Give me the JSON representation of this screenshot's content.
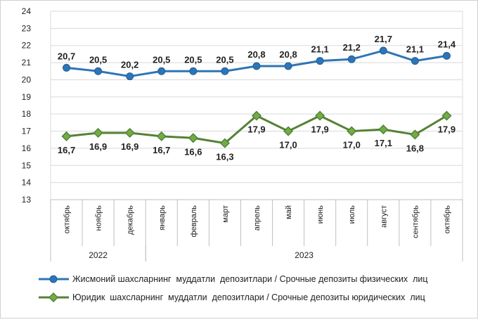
{
  "chart_data": {
    "type": "line",
    "categories": [
      "октябрь",
      "ноябрь",
      "декабрь",
      "январь",
      "февраль",
      "март",
      "апрель",
      "май",
      "июнь",
      "июль",
      "август",
      "сентябрь",
      "октябрь"
    ],
    "year_groups": [
      {
        "label": "2022",
        "start": 0,
        "end": 2
      },
      {
        "label": "2023",
        "start": 3,
        "end": 12
      }
    ],
    "ylim": [
      13,
      24
    ],
    "yticks": [
      13,
      14,
      15,
      16,
      17,
      18,
      19,
      20,
      21,
      22,
      23,
      24
    ],
    "grid": true,
    "legend_position": "bottom",
    "series": [
      {
        "name": "Жисмоний шахсларнинг  муддатли  депозитлари / Срочные депозиты физических  лиц",
        "color": "#2E75B6",
        "marker": "circle",
        "values": [
          20.7,
          20.5,
          20.2,
          20.5,
          20.5,
          20.5,
          20.8,
          20.8,
          21.1,
          21.2,
          21.7,
          21.1,
          21.4
        ],
        "labels": [
          "20,7",
          "20,5",
          "20,2",
          "20,5",
          "20,5",
          "20,5",
          "20,8",
          "20,8",
          "21,1",
          "21,2",
          "21,7",
          "21,1",
          "21,4"
        ]
      },
      {
        "name": "Юридик  шахсларнинг  муддатли  депозитлари / Срочные депозиты юридических  лиц",
        "color": "#548235",
        "marker_fill": "#70AD47",
        "marker": "diamond",
        "values": [
          16.7,
          16.9,
          16.9,
          16.7,
          16.6,
          16.3,
          17.9,
          17.0,
          17.9,
          17.0,
          17.1,
          16.8,
          17.9
        ],
        "labels": [
          "16,7",
          "16,9",
          "16,9",
          "16,7",
          "16,6",
          "16,3",
          "17,9",
          "17,0",
          "17,9",
          "17,0",
          "17,1",
          "16,8",
          "17,9"
        ]
      }
    ]
  }
}
